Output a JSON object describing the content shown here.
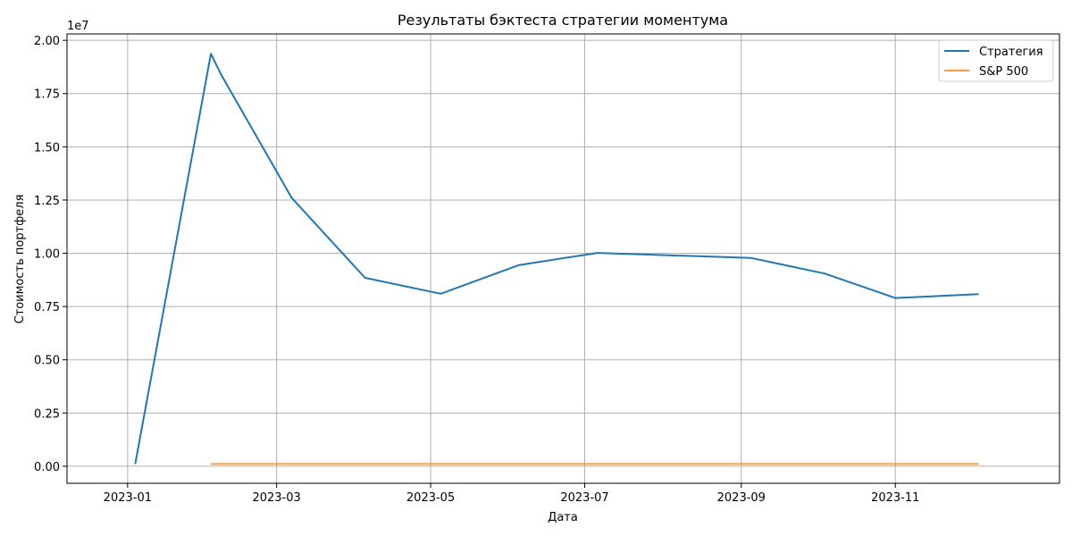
{
  "chart_data": {
    "type": "line",
    "title": "Результаты бэктеста стратегии моментума",
    "xlabel": "Дата",
    "ylabel": "Стоимость портфеля",
    "y_multiplier_label": "1e7",
    "xlim": [
      "2022-12-08",
      "2024-01-05"
    ],
    "ylim": [
      -800000,
      20300000
    ],
    "x_ticks": [
      "2023-01-01",
      "2023-03-01",
      "2023-05-01",
      "2023-07-01",
      "2023-09-01",
      "2023-11-01"
    ],
    "x_tick_labels": [
      "2023-01",
      "2023-03",
      "2023-05",
      "2023-07",
      "2023-09",
      "2023-11"
    ],
    "y_ticks": [
      0,
      2500000,
      5000000,
      7500000,
      10000000,
      12500000,
      15000000,
      17500000,
      20000000
    ],
    "y_tick_labels": [
      "0.00",
      "0.25",
      "0.50",
      "0.75",
      "1.00",
      "1.25",
      "1.50",
      "1.75",
      "2.00"
    ],
    "grid": true,
    "legend_position": "top-right",
    "series": [
      {
        "name": "Стратегия",
        "color": "#1f77b4",
        "x": [
          "2023-01-04",
          "2023-02-03",
          "2023-02-07",
          "2023-03-07",
          "2023-04-05",
          "2023-05-05",
          "2023-06-05",
          "2023-07-06",
          "2023-09-05",
          "2023-10-04",
          "2023-11-01",
          "2023-12-04"
        ],
        "y": [
          100000,
          19370000,
          18400000,
          12600000,
          8850000,
          8100000,
          9450000,
          10020000,
          9780000,
          9050000,
          7900000,
          8080000
        ]
      },
      {
        "name": "S&P 500",
        "color": "#ff7f0e",
        "x": [
          "2023-02-03",
          "2023-12-04"
        ],
        "y": [
          105000,
          105000
        ]
      }
    ]
  }
}
